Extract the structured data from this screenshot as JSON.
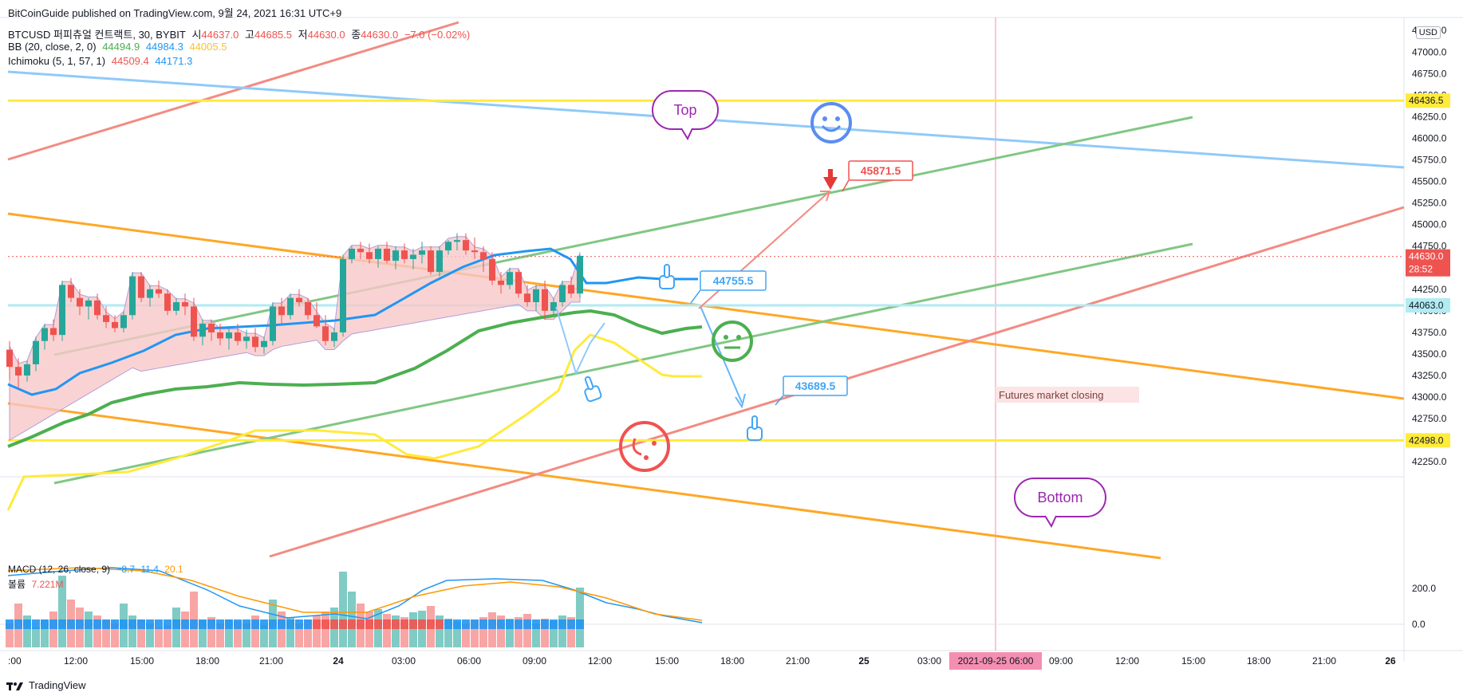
{
  "header": {
    "published": "BitCoinGuide published on TradingView.com, 9월 24, 2021 16:31 UTC+9",
    "symbol": "BTCUSD 퍼피츄얼 컨트랙트, 30, BYBIT",
    "ohlc": {
      "open_label": "시",
      "open": "44637.0",
      "high_label": "고",
      "high": "44685.5",
      "low_label": "저",
      "low": "44630.0",
      "close_label": "종",
      "close": "44630.0",
      "change": "−7.0 (−0.02%)"
    },
    "bb": {
      "label": "BB (20, close, 2, 0)",
      "basis": "44494.9",
      "upper": "44984.3",
      "lower": "44005.5"
    },
    "ichimoku": {
      "label": "Ichimoku (5, 1, 57, 1)",
      "v1": "44509.4",
      "v2": "44171.3"
    }
  },
  "usd_button": "USD",
  "price_axis": [
    "47250.0",
    "47000.0",
    "46750.0",
    "46500.0",
    "46250.0",
    "46000.0",
    "45750.0",
    "45500.0",
    "45250.0",
    "45000.0",
    "44750.0",
    "44500.0",
    "44250.0",
    "44000.0",
    "43750.0",
    "43500.0",
    "43250.0",
    "43000.0",
    "42750.0",
    "42500.0",
    "42250.0"
  ],
  "price_tags": {
    "top_line": "46436.5",
    "current": "44630.0",
    "countdown": "28:52",
    "cyan_line": "44063.0",
    "bottom_line": "42498.0"
  },
  "time_axis": [
    ":00",
    "12:00",
    "15:00",
    "18:00",
    "21:00",
    "24",
    "03:00",
    "06:00",
    "09:00",
    "12:00",
    "15:00",
    "18:00",
    "21:00",
    "25",
    "03:00",
    "06:00",
    "09:00",
    "12:00",
    "15:00",
    "18:00",
    "21:00",
    "26"
  ],
  "time_highlight": "2021-09-25  06:00",
  "macd": {
    "label": "MACD (12, 26, close, 9)",
    "hist": "−8.7",
    "macd": "11.4",
    "signal": "20.1",
    "volume_label": "볼륨",
    "volume": "7.221M",
    "axis": [
      "200.0",
      "0.0"
    ]
  },
  "annotations": {
    "top_bubble": "Top",
    "bottom_bubble": "Bottom",
    "target_high": "45871.5",
    "level_mid": "44755.5",
    "target_low": "43689.5",
    "futures_note": "Futures market closing"
  },
  "footer": {
    "brand": "TradingView"
  },
  "colors": {
    "up": "#26a69a",
    "down": "#ef5350",
    "bb_mid": "#4caf50",
    "bb_upper": "#2196f3",
    "ichimoku_lead": "#ffeb3b",
    "cloud": "#f8c8c8",
    "yellow_level": "#ffeb3b",
    "orange_channel": "#ffa726",
    "green_channel": "#81c784",
    "blue_line": "#90caf9",
    "red_trend": "#f28b82"
  },
  "chart_data": {
    "type": "candlestick",
    "symbol": "BTCUSD",
    "interval": "30",
    "y_range": [
      42150,
      47400
    ],
    "levels": {
      "top": 46436.5,
      "bottom": 42498.0,
      "cyan": 44063.0,
      "current": 44630.0
    },
    "candles": [
      [
        43550,
        43650,
        43200,
        43350
      ],
      [
        43350,
        43450,
        43100,
        43250
      ],
      [
        43250,
        43420,
        43180,
        43380
      ],
      [
        43380,
        43700,
        43300,
        43650
      ],
      [
        43650,
        43850,
        43550,
        43800
      ],
      [
        43800,
        43900,
        43650,
        43720
      ],
      [
        43720,
        44350,
        43650,
        44300
      ],
      [
        44300,
        44380,
        44100,
        44150
      ],
      [
        44150,
        44250,
        43950,
        44050
      ],
      [
        44050,
        44150,
        43900,
        44120
      ],
      [
        44120,
        44200,
        43900,
        43950
      ],
      [
        43950,
        44050,
        43800,
        43870
      ],
      [
        43870,
        43950,
        43750,
        43800
      ],
      [
        43800,
        44000,
        43750,
        43950
      ],
      [
        43950,
        44450,
        43900,
        44400
      ],
      [
        44400,
        44450,
        44100,
        44150
      ],
      [
        44150,
        44300,
        44050,
        44250
      ],
      [
        44250,
        44350,
        44150,
        44200
      ],
      [
        44200,
        44250,
        43950,
        44000
      ],
      [
        44000,
        44150,
        43950,
        44100
      ],
      [
        44100,
        44200,
        43950,
        44050
      ],
      [
        44050,
        44150,
        43650,
        43700
      ],
      [
        43700,
        43900,
        43600,
        43850
      ],
      [
        43850,
        43900,
        43650,
        43750
      ],
      [
        43750,
        43850,
        43600,
        43680
      ],
      [
        43680,
        43800,
        43550,
        43750
      ],
      [
        43750,
        43850,
        43600,
        43650
      ],
      [
        43650,
        43780,
        43560,
        43700
      ],
      [
        43700,
        43800,
        43520,
        43580
      ],
      [
        43580,
        43700,
        43500,
        43650
      ],
      [
        43650,
        44100,
        43600,
        44050
      ],
      [
        44050,
        44150,
        43850,
        43950
      ],
      [
        43950,
        44200,
        43900,
        44150
      ],
      [
        44150,
        44250,
        44050,
        44100
      ],
      [
        44100,
        44150,
        43900,
        43950
      ],
      [
        43950,
        44100,
        43800,
        43820
      ],
      [
        43820,
        43950,
        43600,
        43650
      ],
      [
        43650,
        43800,
        43580,
        43750
      ],
      [
        43750,
        44650,
        43700,
        44600
      ],
      [
        44600,
        44750,
        44550,
        44720
      ],
      [
        44720,
        44800,
        44600,
        44680
      ],
      [
        44680,
        44780,
        44550,
        44600
      ],
      [
        44600,
        44750,
        44500,
        44720
      ],
      [
        44720,
        44800,
        44550,
        44580
      ],
      [
        44580,
        44750,
        44480,
        44700
      ],
      [
        44700,
        44780,
        44550,
        44600
      ],
      [
        44600,
        44720,
        44480,
        44650
      ],
      [
        44650,
        44800,
        44550,
        44700
      ],
      [
        44700,
        44750,
        44420,
        44450
      ],
      [
        44450,
        44750,
        44400,
        44700
      ],
      [
        44700,
        44820,
        44650,
        44800
      ],
      [
        44800,
        44900,
        44700,
        44820
      ],
      [
        44820,
        44900,
        44650,
        44700
      ],
      [
        44700,
        44850,
        44600,
        44680
      ],
      [
        44680,
        44750,
        44450,
        44600
      ],
      [
        44600,
        44680,
        44300,
        44350
      ],
      [
        44350,
        44450,
        44200,
        44300
      ],
      [
        44300,
        44500,
        44250,
        44450
      ],
      [
        44450,
        44480,
        44150,
        44200
      ],
      [
        44200,
        44300,
        44050,
        44100
      ],
      [
        44100,
        44300,
        44000,
        44250
      ],
      [
        44250,
        44350,
        43900,
        44000
      ],
      [
        44000,
        44150,
        43950,
        44100
      ],
      [
        44100,
        44350,
        44050,
        44300
      ],
      [
        44300,
        44400,
        44150,
        44200
      ],
      [
        44200,
        44650,
        44150,
        44637
      ]
    ],
    "volume": [
      30,
      55,
      40,
      25,
      35,
      45,
      90,
      60,
      50,
      45,
      40,
      35,
      30,
      55,
      40,
      35,
      30,
      25,
      28,
      50,
      45,
      70,
      35,
      38,
      30,
      35,
      33,
      30,
      40,
      28,
      60,
      45,
      38,
      30,
      35,
      40,
      45,
      50,
      95,
      70,
      55,
      45,
      48,
      42,
      40,
      38,
      44,
      46,
      52,
      40,
      36,
      32,
      30,
      34,
      38,
      44,
      40,
      36,
      38,
      42,
      30,
      36,
      33,
      40,
      38,
      75
    ],
    "series": [
      {
        "name": "BB (20, close, 2, 0)",
        "values": [
          44494.9,
          44984.3,
          44005.5
        ]
      },
      {
        "name": "Ichimoku (5, 1, 57, 1)",
        "values": [
          44509.4,
          44171.3
        ]
      }
    ]
  }
}
